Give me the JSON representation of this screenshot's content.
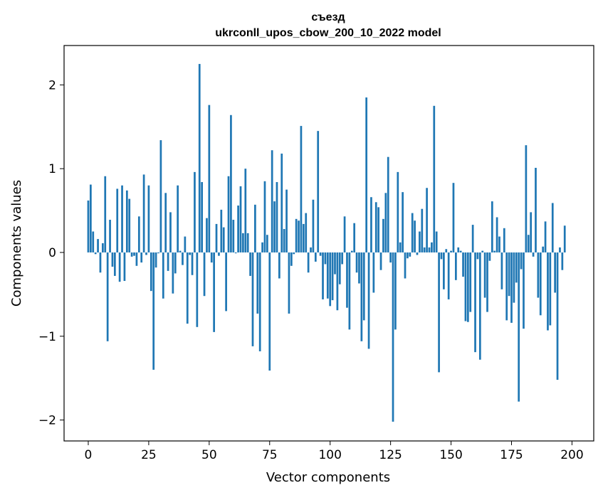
{
  "chart_data": {
    "type": "bar",
    "title": "съезд",
    "subtitle": "ukrconll_upos_cbow_200_10_2022 model",
    "xlabel": "Vector components",
    "ylabel": "Components values",
    "xlim": [
      -10,
      209
    ],
    "ylim": [
      -2.25,
      2.47
    ],
    "xticks": [
      0,
      25,
      50,
      75,
      100,
      125,
      150,
      175,
      200
    ],
    "yticks": [
      -2,
      -1,
      0,
      1,
      2
    ],
    "xtick_labels": [
      "0",
      "25",
      "50",
      "75",
      "100",
      "125",
      "150",
      "175",
      "200"
    ],
    "ytick_labels": [
      "−2",
      "−1",
      "0",
      "1",
      "2"
    ],
    "grid": false,
    "bar_color": "#1f77b4",
    "values": [
      0.62,
      0.81,
      0.25,
      -0.02,
      0.16,
      -0.24,
      0.11,
      0.91,
      -1.06,
      0.39,
      -0.17,
      -0.28,
      0.76,
      -0.35,
      0.8,
      -0.34,
      0.74,
      0.64,
      -0.05,
      -0.04,
      -0.16,
      0.43,
      -0.12,
      0.93,
      -0.03,
      0.8,
      -0.46,
      -1.4,
      -0.18,
      -0.01,
      1.34,
      -0.55,
      0.71,
      -0.22,
      0.48,
      -0.49,
      -0.25,
      0.8,
      0.02,
      -0.15,
      0.19,
      -0.85,
      -0.03,
      -0.27,
      0.96,
      -0.89,
      2.25,
      0.84,
      -0.52,
      0.41,
      1.76,
      -0.12,
      -0.95,
      0.34,
      -0.04,
      0.51,
      0.3,
      -0.7,
      0.91,
      1.64,
      0.39,
      -0.01,
      0.56,
      0.79,
      0.23,
      1.0,
      0.23,
      -0.28,
      -1.12,
      0.57,
      -0.73,
      -1.18,
      0.12,
      0.85,
      0.21,
      -1.41,
      1.22,
      0.61,
      0.84,
      -0.31,
      1.18,
      0.28,
      0.75,
      -0.73,
      -0.16,
      -0.02,
      0.4,
      0.38,
      1.51,
      0.34,
      0.47,
      -0.24,
      0.06,
      0.63,
      -0.11,
      1.45,
      -0.04,
      -0.56,
      -0.14,
      -0.55,
      -0.64,
      -0.57,
      -0.26,
      -0.69,
      -0.38,
      -0.14,
      0.43,
      -0.66,
      -0.92,
      0.02,
      0.35,
      -0.24,
      -0.37,
      -1.06,
      -0.81,
      1.85,
      -1.15,
      0.66,
      -0.48,
      0.6,
      0.54,
      -0.21,
      0.4,
      0.71,
      1.14,
      -0.12,
      -2.02,
      -0.92,
      0.96,
      0.12,
      0.72,
      -0.31,
      -0.07,
      -0.05,
      0.47,
      0.38,
      -0.03,
      0.25,
      0.52,
      0.06,
      0.77,
      0.06,
      0.12,
      1.75,
      0.25,
      -1.43,
      -0.08,
      -0.44,
      0.04,
      -0.56,
      0.02,
      0.83,
      -0.33,
      0.06,
      0.02,
      -0.29,
      -0.82,
      -0.83,
      -0.71,
      0.33,
      -1.19,
      -0.08,
      -1.28,
      0.02,
      -0.54,
      -0.71,
      -0.1,
      0.61,
      0.02,
      0.42,
      0.19,
      -0.44,
      0.29,
      -0.81,
      -0.52,
      -0.84,
      -0.6,
      -0.36,
      -1.78,
      -0.2,
      -0.91,
      1.28,
      0.21,
      0.48,
      -0.05,
      1.01,
      -0.54,
      -0.75,
      0.07,
      0.37,
      -0.93,
      -0.87,
      0.59,
      -0.48,
      -1.52,
      0.06,
      -0.21,
      0.32
    ]
  }
}
